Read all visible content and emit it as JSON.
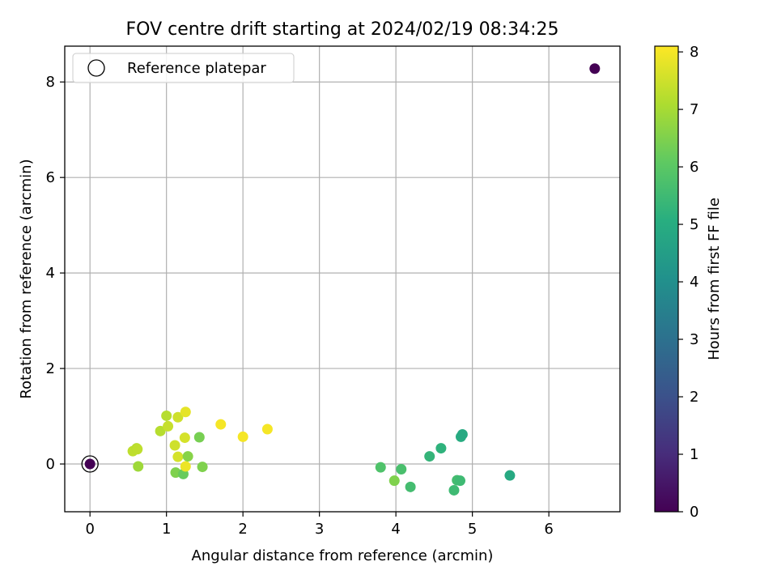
{
  "chart_data": {
    "type": "scatter",
    "title": "FOV centre drift starting at 2024/02/19 08:34:25",
    "xlabel": "Angular distance from reference (arcmin)",
    "ylabel": "Rotation from reference (arcmin)",
    "xlim": [
      -0.33,
      6.93
    ],
    "ylim": [
      -1.0,
      8.75
    ],
    "xticks": [
      "0",
      "1",
      "2",
      "3",
      "4",
      "5",
      "6"
    ],
    "yticks": [
      "0",
      "2",
      "4",
      "6",
      "8"
    ],
    "grid": true,
    "legend": {
      "placement": "upper-left",
      "entries": [
        "Reference platepar"
      ]
    },
    "colorbar": {
      "label": "Hours from first FF file",
      "range": [
        0,
        8.1
      ],
      "ticks": [
        "0",
        "1",
        "2",
        "3",
        "4",
        "5",
        "6",
        "7",
        "8"
      ],
      "colormap": "viridis"
    },
    "reference_point": {
      "x": 0,
      "y": 0
    },
    "points": [
      {
        "x": 0.0,
        "y": 0.0,
        "c": 0.0
      },
      {
        "x": 6.6,
        "y": 8.28,
        "c": 0.0
      },
      {
        "x": 0.56,
        "y": 0.27,
        "c": 7.3
      },
      {
        "x": 0.61,
        "y": 0.33,
        "c": 7.2
      },
      {
        "x": 0.62,
        "y": 0.31,
        "c": 7.3
      },
      {
        "x": 0.63,
        "y": -0.05,
        "c": 6.9
      },
      {
        "x": 0.92,
        "y": 0.69,
        "c": 7.2
      },
      {
        "x": 1.0,
        "y": 1.01,
        "c": 7.2
      },
      {
        "x": 1.02,
        "y": 0.79,
        "c": 7.4
      },
      {
        "x": 1.11,
        "y": 0.39,
        "c": 7.5
      },
      {
        "x": 1.12,
        "y": -0.18,
        "c": 6.5
      },
      {
        "x": 1.15,
        "y": 0.98,
        "c": 7.5
      },
      {
        "x": 1.15,
        "y": 0.15,
        "c": 7.6
      },
      {
        "x": 1.22,
        "y": -0.21,
        "c": 6.2
      },
      {
        "x": 1.24,
        "y": 0.55,
        "c": 7.6
      },
      {
        "x": 1.25,
        "y": 1.09,
        "c": 7.8
      },
      {
        "x": 1.25,
        "y": -0.05,
        "c": 7.9
      },
      {
        "x": 1.28,
        "y": 0.16,
        "c": 6.6
      },
      {
        "x": 1.43,
        "y": 0.56,
        "c": 6.4
      },
      {
        "x": 1.47,
        "y": -0.06,
        "c": 6.5
      },
      {
        "x": 1.71,
        "y": 0.83,
        "c": 8.0
      },
      {
        "x": 2.0,
        "y": 0.57,
        "c": 8.0
      },
      {
        "x": 2.32,
        "y": 0.73,
        "c": 8.0
      },
      {
        "x": 3.8,
        "y": -0.07,
        "c": 5.8
      },
      {
        "x": 3.98,
        "y": -0.35,
        "c": 6.5
      },
      {
        "x": 4.07,
        "y": -0.11,
        "c": 5.7
      },
      {
        "x": 4.19,
        "y": -0.48,
        "c": 5.6
      },
      {
        "x": 4.44,
        "y": 0.16,
        "c": 5.3
      },
      {
        "x": 4.59,
        "y": 0.33,
        "c": 5.2
      },
      {
        "x": 4.76,
        "y": -0.55,
        "c": 5.5
      },
      {
        "x": 4.8,
        "y": -0.34,
        "c": 5.6
      },
      {
        "x": 4.84,
        "y": -0.35,
        "c": 5.5
      },
      {
        "x": 4.85,
        "y": 0.57,
        "c": 5.0
      },
      {
        "x": 4.87,
        "y": 0.62,
        "c": 4.9
      },
      {
        "x": 5.49,
        "y": -0.24,
        "c": 4.9
      }
    ]
  }
}
